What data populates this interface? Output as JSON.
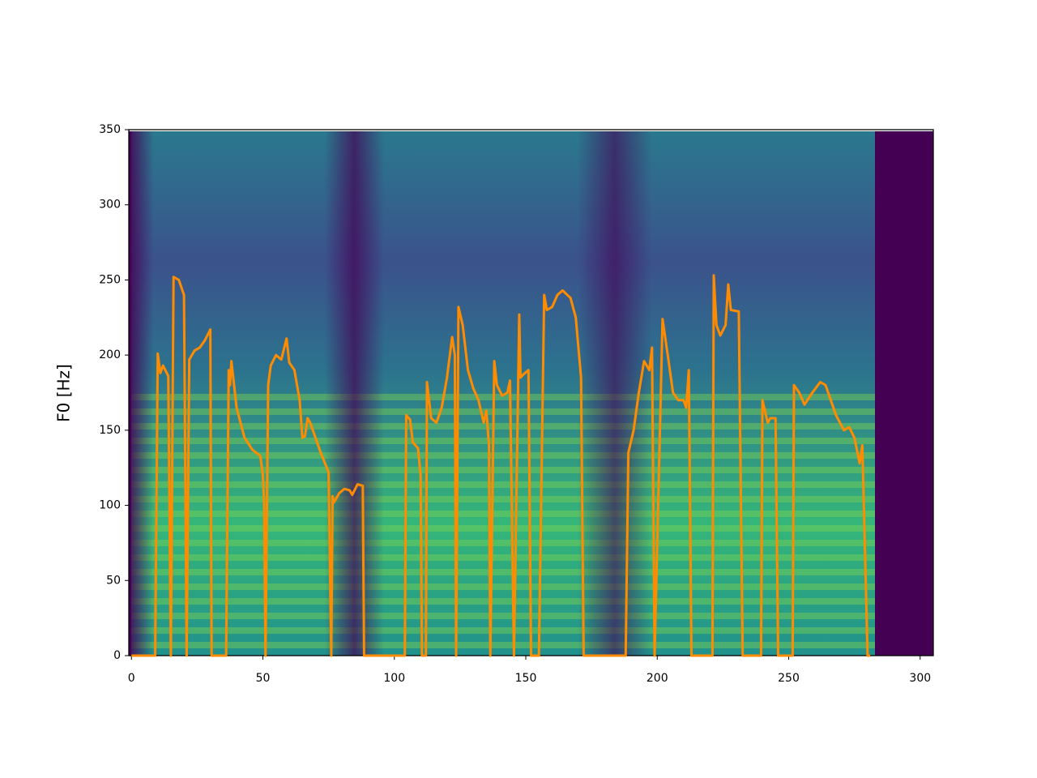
{
  "chart_data": {
    "type": "line",
    "ylabel": "F0 [Hz]",
    "x": [
      0,
      9,
      10,
      11,
      12,
      14,
      15,
      16,
      18,
      20,
      21,
      22,
      24,
      26,
      28,
      30,
      30.5,
      36,
      37,
      37.5,
      38,
      40,
      43,
      46,
      49,
      50,
      50.5,
      51,
      52,
      53,
      55,
      57,
      59,
      60,
      62,
      64,
      65,
      66,
      67,
      68,
      70,
      72,
      75,
      76,
      76.5,
      77,
      79,
      81,
      83,
      84,
      86,
      88,
      88.5,
      104,
      104.5,
      106,
      107,
      109,
      110,
      110.5,
      112,
      112.4,
      114,
      116,
      118,
      120,
      122,
      123,
      123.5,
      124.4,
      126,
      128,
      130,
      132,
      134,
      135,
      136,
      136.5,
      138,
      139,
      141,
      143,
      144,
      145.5,
      147.5,
      148,
      149,
      151,
      152,
      155,
      157,
      158,
      160,
      162,
      164,
      167,
      169,
      171,
      172,
      188,
      189,
      191,
      193,
      195,
      197,
      198,
      199,
      202,
      204,
      206,
      208,
      210,
      211,
      212,
      213,
      221,
      221.5,
      222.5,
      224,
      226,
      227,
      228,
      231,
      232.5,
      239.5,
      240,
      242,
      243,
      245,
      246,
      251.5,
      252,
      254,
      256,
      259,
      262,
      264,
      268,
      271,
      273,
      275,
      277,
      278,
      280,
      281
    ],
    "values": [
      0,
      0,
      201,
      188,
      193,
      186,
      0,
      252,
      250,
      240,
      0,
      197,
      203,
      205,
      210,
      217,
      0,
      0,
      190,
      180,
      196,
      165,
      145,
      137,
      133,
      120,
      100,
      0,
      180,
      193,
      200,
      197,
      211,
      195,
      190,
      170,
      145,
      146,
      158,
      155,
      145,
      135,
      122,
      0,
      106,
      102,
      108,
      111,
      110,
      107,
      114,
      113,
      0,
      0,
      160,
      157,
      142,
      138,
      120,
      0,
      0,
      182,
      158,
      155,
      165,
      185,
      212,
      200,
      0,
      232,
      220,
      190,
      178,
      170,
      155,
      163,
      140,
      0,
      196,
      180,
      173,
      175,
      183,
      0,
      227,
      185,
      187,
      190,
      0,
      0,
      240,
      230,
      232,
      240,
      243,
      238,
      225,
      185,
      0,
      0,
      135,
      150,
      175,
      196,
      190,
      205,
      0,
      224,
      200,
      175,
      170,
      170,
      165,
      190,
      0,
      0,
      253,
      220,
      213,
      220,
      247,
      230,
      229,
      0,
      0,
      170,
      155,
      158,
      158,
      0,
      0,
      180,
      175,
      167,
      175,
      182,
      180,
      160,
      150,
      152,
      145,
      128,
      140,
      0,
      0
    ],
    "color": "#ff8c00",
    "xlim": [
      -1,
      305
    ],
    "ylim": [
      0,
      350
    ],
    "xticks": [
      0,
      50,
      100,
      150,
      200,
      250,
      300
    ],
    "yticks": [
      0,
      50,
      100,
      150,
      200,
      250,
      300,
      350
    ]
  }
}
